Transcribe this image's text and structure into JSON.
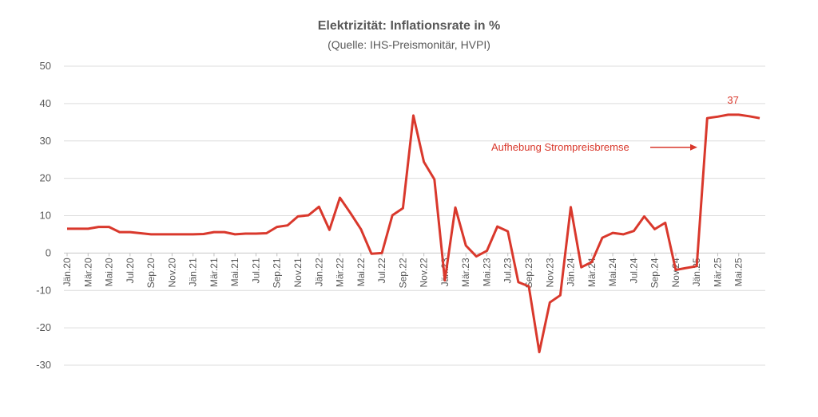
{
  "chart_data": {
    "type": "line",
    "title": "Elektrizität: Inflationsrate in %",
    "subtitle": "(Quelle: IHS-Preismonitär, HVPI)",
    "ylim": [
      -30,
      50
    ],
    "yticks": [
      50,
      40,
      30,
      20,
      10,
      0,
      -10,
      -20,
      -30
    ],
    "grid": true,
    "line_color": "#d9382c",
    "tick_labels": [
      "Jän.20",
      "Mär.20",
      "Mai.20",
      "Jul.20",
      "Sep.20",
      "Nov.20",
      "Jän.21",
      "Mär.21",
      "Mai.21",
      "Jul.21",
      "Sep.21",
      "Nov.21",
      "Jän.22",
      "Mär.22",
      "Mai.22",
      "Jul.22",
      "Sep.22",
      "Nov.22",
      "Jän.23",
      "Mär.23",
      "Mai.23",
      "Jul.23",
      "Sep.23",
      "Nov.23",
      "Jän.24",
      "Mär.24",
      "Mai.24",
      "Jul.24",
      "Sep.24",
      "Nov.24",
      "Jän.25",
      "Mär.25",
      "Mai.25"
    ],
    "series": [
      {
        "values": [
          6.5,
          6.5,
          6.5,
          7.0,
          7.0,
          5.6,
          5.6,
          5.3,
          5.0,
          5.0,
          5.0,
          5.0,
          5.0,
          5.1,
          5.6,
          5.6,
          5.0,
          5.2,
          5.2,
          5.3,
          7.0,
          7.4,
          9.8,
          10.1,
          12.4,
          6.2,
          14.8,
          10.7,
          6.4,
          -0.2,
          0.0,
          10.1,
          12.0,
          36.8,
          24.4,
          19.7,
          -7.3,
          12.2,
          2.0,
          -0.9,
          0.6,
          7.1,
          5.8,
          -7.8,
          -8.9,
          -26.5,
          -13.2,
          -11.3,
          12.3,
          -3.8,
          -2.4,
          4.1,
          5.4,
          5.0,
          5.9,
          9.8,
          6.4,
          8.1,
          -4.5,
          -4.0,
          -3.5,
          36.1,
          36.5,
          37.0,
          37.0,
          36.6,
          36.1
        ]
      }
    ],
    "annotations": {
      "peak_label": "37",
      "event_label": "Aufhebung Strompreisbremse"
    }
  }
}
